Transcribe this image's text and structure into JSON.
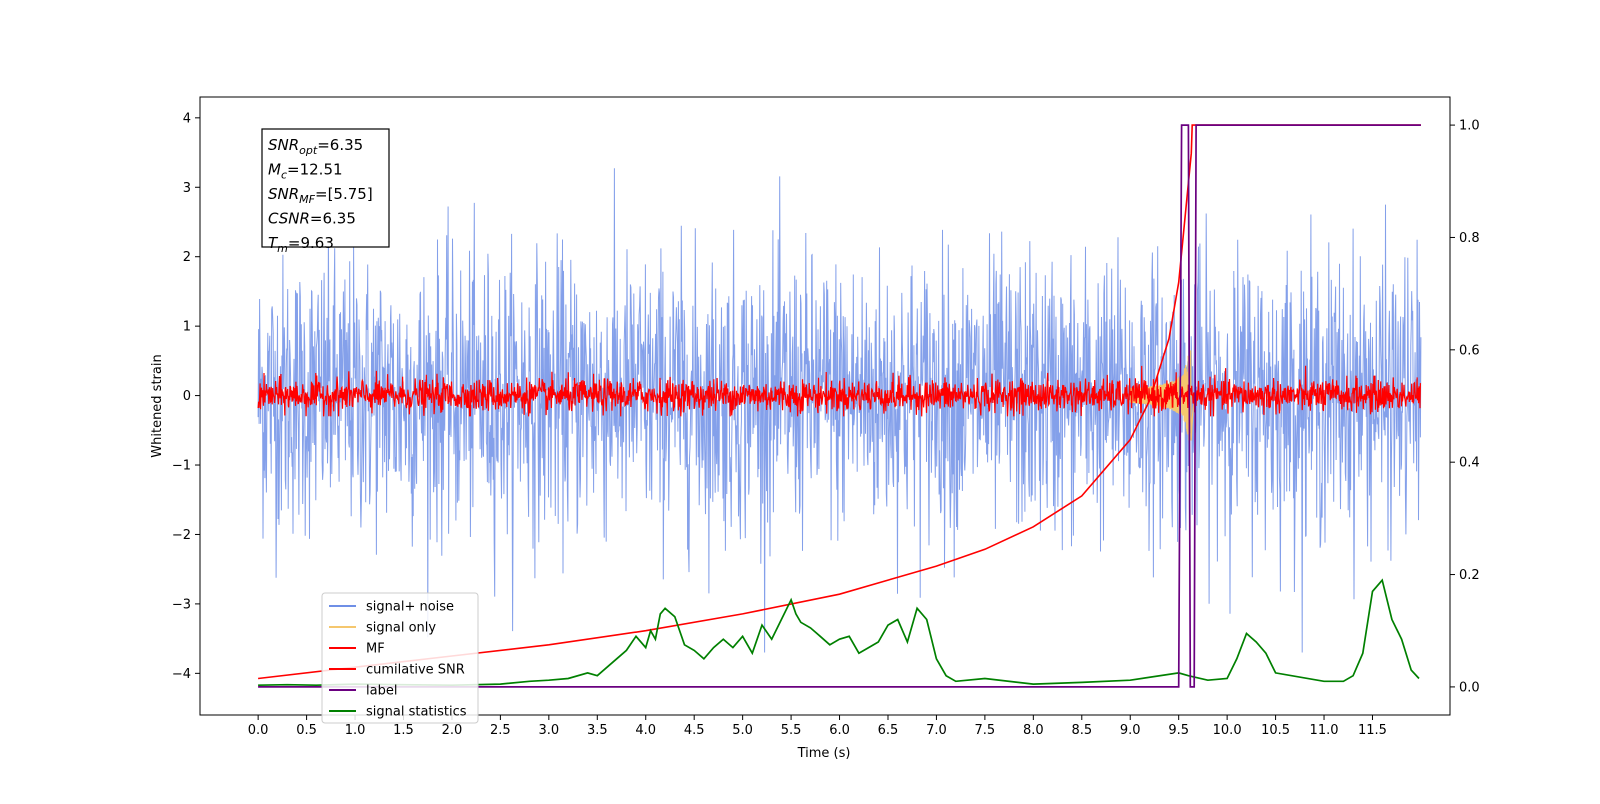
{
  "chart_data": {
    "type": "line",
    "xlabel": "Time (s)",
    "ylabel": "Whitened strain",
    "xlim": [
      -0.6,
      12.3
    ],
    "ylim_left": [
      -4.6,
      4.3
    ],
    "ylim_right": [
      -0.05,
      1.05
    ],
    "x_ticks": [
      "0.0",
      "0.5",
      "1.0",
      "1.5",
      "2.0",
      "2.5",
      "3.0",
      "3.5",
      "4.0",
      "4.5",
      "5.0",
      "5.5",
      "6.0",
      "6.5",
      "7.0",
      "7.5",
      "8.0",
      "8.5",
      "9.0",
      "9.5",
      "10.0",
      "10.5",
      "11.0",
      "11.5"
    ],
    "y_ticks_left": [
      "4",
      "3",
      "2",
      "1",
      "0",
      "−1",
      "−2",
      "−3",
      "−4"
    ],
    "y_ticks_right": [
      "1.0",
      "0.8",
      "0.6",
      "0.4",
      "0.2",
      "0.0"
    ],
    "annotation": {
      "lines": [
        {
          "main": "SNR",
          "sub": "opt",
          "value": "=6.35"
        },
        {
          "main": "M",
          "sub": "c",
          "value": "=12.51"
        },
        {
          "main": "SNR",
          "sub": "MF",
          "value": "=[5.75]"
        },
        {
          "main": "CSNR",
          "sub": "",
          "value": "=6.35"
        },
        {
          "main": "T",
          "sub": "m",
          "value": "=9.63"
        }
      ]
    },
    "legend_position": "lower-left",
    "series": [
      {
        "name": "signal+ noise",
        "color": "#6f8fe6",
        "axis": "left",
        "kind": "noise",
        "amplitude_range": [
          -3.7,
          3.9
        ],
        "std": 1.0,
        "x_range": [
          0.0,
          12.0
        ]
      },
      {
        "name": "signal only",
        "color": "#f5c76e",
        "axis": "left",
        "kind": "chirp",
        "peak_time": 9.63,
        "peak_amplitude": 0.65
      },
      {
        "name": "MF",
        "color": "#ff0000",
        "axis": "left",
        "kind": "noise",
        "amplitude_range": [
          -0.3,
          0.7
        ],
        "std": 0.12,
        "x_range": [
          0.0,
          12.0
        ]
      },
      {
        "name": "cumilative SNR",
        "color": "#ff0000",
        "axis": "right",
        "x": [
          0.0,
          1.0,
          2.0,
          3.0,
          4.0,
          5.0,
          6.0,
          7.0,
          7.5,
          8.0,
          8.5,
          9.0,
          9.2,
          9.4,
          9.5,
          9.63,
          9.64,
          12.0
        ],
        "y": [
          0.015,
          0.035,
          0.055,
          0.075,
          0.1,
          0.13,
          0.165,
          0.215,
          0.245,
          0.285,
          0.34,
          0.44,
          0.51,
          0.62,
          0.72,
          0.95,
          1.0,
          1.0
        ]
      },
      {
        "name": "label",
        "color": "#6a0080",
        "axis": "right",
        "x": [
          0.0,
          9.5,
          9.53,
          9.6,
          9.62,
          9.66,
          9.68,
          12.0
        ],
        "y": [
          0.0,
          0.0,
          1.0,
          1.0,
          0.0,
          0.0,
          1.0,
          1.0
        ]
      },
      {
        "name": "signal statistics",
        "color": "#008000",
        "axis": "right",
        "x": [
          0.0,
          0.3,
          0.6,
          1.0,
          1.5,
          2.0,
          2.5,
          2.8,
          3.0,
          3.2,
          3.4,
          3.5,
          3.7,
          3.8,
          3.9,
          4.0,
          4.05,
          4.1,
          4.15,
          4.2,
          4.3,
          4.4,
          4.5,
          4.6,
          4.7,
          4.8,
          4.9,
          5.0,
          5.1,
          5.2,
          5.3,
          5.4,
          5.5,
          5.55,
          5.6,
          5.7,
          5.8,
          5.9,
          6.0,
          6.1,
          6.2,
          6.3,
          6.4,
          6.5,
          6.6,
          6.7,
          6.8,
          6.9,
          7.0,
          7.1,
          7.2,
          7.5,
          8.0,
          8.5,
          9.0,
          9.5,
          9.6,
          9.8,
          10.0,
          10.1,
          10.2,
          10.3,
          10.4,
          10.5,
          11.0,
          11.2,
          11.3,
          11.4,
          11.5,
          11.6,
          11.7,
          11.8,
          11.9,
          11.98
        ],
        "y": [
          0.003,
          0.004,
          0.003,
          0.005,
          0.004,
          0.003,
          0.005,
          0.01,
          0.012,
          0.015,
          0.025,
          0.02,
          0.05,
          0.065,
          0.09,
          0.07,
          0.1,
          0.085,
          0.13,
          0.14,
          0.125,
          0.075,
          0.065,
          0.05,
          0.07,
          0.085,
          0.07,
          0.09,
          0.06,
          0.11,
          0.085,
          0.12,
          0.155,
          0.13,
          0.115,
          0.105,
          0.09,
          0.075,
          0.085,
          0.09,
          0.06,
          0.07,
          0.08,
          0.11,
          0.12,
          0.08,
          0.14,
          0.12,
          0.05,
          0.02,
          0.01,
          0.015,
          0.005,
          0.008,
          0.012,
          0.025,
          0.02,
          0.012,
          0.015,
          0.05,
          0.095,
          0.08,
          0.06,
          0.025,
          0.01,
          0.01,
          0.02,
          0.06,
          0.17,
          0.19,
          0.12,
          0.085,
          0.03,
          0.015
        ]
      }
    ]
  }
}
